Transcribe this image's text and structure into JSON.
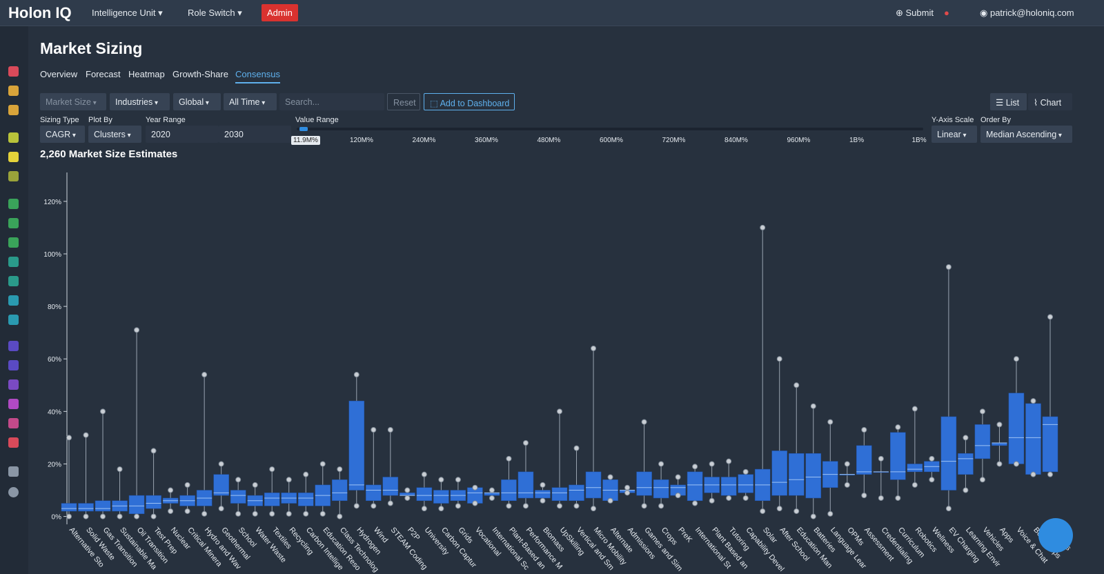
{
  "header": {
    "logo": "Holon IQ",
    "menus": [
      "Intelligence Unit",
      "Role Switch"
    ],
    "admin": "Admin",
    "submit": "Submit",
    "user": "patrick@holoniq.com"
  },
  "page": {
    "title": "Market Sizing",
    "tabs": [
      "Overview",
      "Forecast",
      "Heatmap",
      "Growth-Share",
      "Consensus"
    ],
    "active_tab": 4
  },
  "filters": {
    "selects": [
      "Market Size",
      "Industries",
      "Global",
      "All Time"
    ],
    "search_placeholder": "Search...",
    "reset": "Reset",
    "add": "Add to Dashboard",
    "views": [
      "List",
      "Chart"
    ]
  },
  "controls": {
    "sizing_type": {
      "label": "Sizing Type",
      "value": "CAGR"
    },
    "plot_by": {
      "label": "Plot By",
      "value": "Clusters"
    },
    "year_range": {
      "label": "Year Range",
      "from": 2020,
      "to": 2030
    },
    "value_range": {
      "label": "Value Range",
      "current": "11.9M%",
      "ticks": [
        "120M%",
        "240M%",
        "360M%",
        "480M%",
        "600M%",
        "720M%",
        "840M%",
        "960M%",
        "1B%",
        "1B%"
      ]
    },
    "y_axis_scale": {
      "label": "Y-Axis Scale",
      "value": "Linear"
    },
    "order_by": {
      "label": "Order By",
      "value": "Median Ascending"
    }
  },
  "count_title": "2,260 Market Size Estimates",
  "chart_data": {
    "type": "box",
    "box_color": "#2f6fd6",
    "categories": [
      "Alternative Sto",
      "Solid Waste",
      "Gas Transition",
      "Sustainable Ma",
      "Oil Transition",
      "Test Prep",
      "Nuclear",
      "Critical Minera",
      "Hydro and Wav",
      "Geothermal",
      "School",
      "Water Waste",
      "Textiles",
      "Recycling",
      "Carbon Intellige",
      "Education Reso",
      "Class Technolog",
      "Hydrogen",
      "Wind",
      "STEAM Coding",
      "P2P",
      "University",
      "Carbon Captur",
      "Grids",
      "Vocational",
      "International Sc",
      "Plant-Based an",
      "Performance M",
      "Biomass",
      "UpSkilling",
      "Vertical and Sm",
      "Micro Mobility",
      "Alternate",
      "Admissions",
      "Games and Sim",
      "Crops",
      "PreK",
      "International St",
      "Plant Based an",
      "Tutoring",
      "Capability Devel",
      "Solar",
      "After School",
      "Education Man",
      "Batteries",
      "Language Lear",
      "OPMs",
      "Assessment",
      "Credentialing",
      "Curriculum",
      "Robotics",
      "Wellness",
      "EV Charging",
      "Learning Envir",
      "Vehicles",
      "Apps",
      "Voice & Chat",
      "Bootcamps",
      "MOOCs"
    ],
    "min": [
      0,
      0,
      0,
      0,
      0,
      0,
      2,
      2,
      1,
      3,
      1,
      1,
      1,
      1,
      1,
      1,
      0,
      4,
      4,
      5,
      7,
      3,
      3,
      4,
      5,
      7,
      4,
      4,
      6,
      4,
      4,
      3,
      6,
      9,
      4,
      4,
      8,
      5,
      6,
      7,
      7,
      2,
      3,
      2,
      0,
      1,
      12,
      8,
      7,
      7,
      12,
      14,
      3,
      10,
      14,
      20,
      20,
      16,
      16
    ],
    "q1": [
      2,
      2,
      2,
      2,
      1,
      3,
      5,
      4,
      4,
      8,
      5,
      4,
      4,
      5,
      4,
      4,
      6,
      10,
      6,
      8,
      8,
      6,
      5,
      6,
      5,
      8,
      6,
      7,
      7,
      6,
      6,
      7,
      6,
      9,
      8,
      7,
      8,
      6,
      9,
      8,
      9,
      6,
      8,
      8,
      7,
      11,
      16,
      16,
      17,
      14,
      17,
      17,
      10,
      16,
      22,
      27,
      20,
      16,
      17
    ],
    "median": [
      3,
      3,
      3,
      4,
      4,
      5,
      6,
      6,
      7,
      9,
      8,
      6,
      7,
      7,
      7,
      8,
      9,
      12,
      10,
      10,
      8,
      8,
      8,
      8,
      9,
      9,
      9,
      9,
      9,
      9,
      10,
      11,
      10,
      10,
      11,
      11,
      11,
      12,
      12,
      12,
      12,
      12,
      13,
      14,
      15,
      16,
      16,
      17,
      17,
      17,
      18,
      19,
      21,
      22,
      27,
      28,
      30,
      30,
      35
    ],
    "q3": [
      5,
      5,
      6,
      6,
      8,
      8,
      7,
      8,
      10,
      16,
      10,
      8,
      9,
      9,
      9,
      12,
      14,
      44,
      12,
      15,
      9,
      11,
      10,
      10,
      11,
      9,
      14,
      17,
      10,
      11,
      12,
      17,
      14,
      10,
      17,
      14,
      12,
      17,
      15,
      15,
      16,
      18,
      25,
      24,
      24,
      21,
      16,
      27,
      17,
      32,
      20,
      21,
      38,
      24,
      35,
      28,
      47,
      43,
      38
    ],
    "max": [
      30,
      31,
      40,
      18,
      71,
      25,
      10,
      12,
      54,
      20,
      14,
      12,
      18,
      14,
      16,
      20,
      18,
      54,
      33,
      33,
      10,
      16,
      14,
      14,
      11,
      10,
      22,
      28,
      12,
      40,
      26,
      64,
      15,
      11,
      36,
      20,
      15,
      19,
      20,
      21,
      17,
      110,
      60,
      50,
      42,
      36,
      20,
      33,
      22,
      34,
      41,
      22,
      95,
      30,
      40,
      35,
      60,
      44,
      76
    ],
    "ylim": [
      -3,
      131
    ],
    "yticks": [
      {
        "value": 0,
        "label": "0%"
      },
      {
        "value": 20,
        "label": "20%"
      },
      {
        "value": 40,
        "label": "40%"
      },
      {
        "value": 60,
        "label": "60%"
      },
      {
        "value": 80,
        "label": "80%"
      },
      {
        "value": 100,
        "label": "100%"
      },
      {
        "value": 120,
        "label": "120%"
      }
    ],
    "grid": false
  }
}
